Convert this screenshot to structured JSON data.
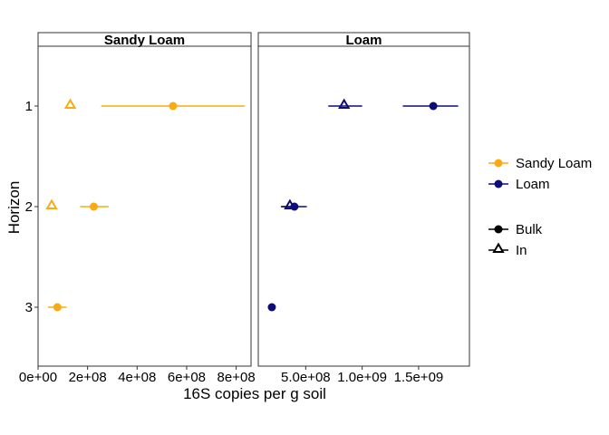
{
  "chart_data": {
    "type": "scatter",
    "subtype": "point-range, faceted",
    "xlabel": "16S copies per g soil",
    "ylabel": "Horizon",
    "y_categories": [
      "1",
      "2",
      "3"
    ],
    "grid": false,
    "legend_position": "right",
    "colors": {
      "Sandy Loam": "#f9ab11",
      "Loam": "#0e0c78"
    },
    "legend": {
      "color_items": [
        {
          "label": "Sandy Loam",
          "color": "#f9ab11"
        },
        {
          "label": "Loam",
          "color": "#0e0c78"
        }
      ],
      "shape_items": [
        {
          "label": "Bulk",
          "shape": "circle"
        },
        {
          "label": "In",
          "shape": "triangle-open"
        }
      ]
    },
    "facets": [
      {
        "title": "Sandy Loam",
        "color": "#f9ab11",
        "xlim": [
          0,
          860000000
        ],
        "x_ticks": [
          0,
          200000000,
          400000000,
          600000000,
          800000000
        ],
        "x_tick_labels": [
          "0e+00",
          "2e+08",
          "4e+08",
          "6e+08",
          "8e+08"
        ],
        "points": [
          {
            "horizon": "1",
            "type": "Bulk",
            "x": 545000000,
            "xmin": 255000000,
            "xmax": 835000000
          },
          {
            "horizon": "1",
            "type": "In",
            "x": 130000000,
            "xmin": 130000000,
            "xmax": 130000000
          },
          {
            "horizon": "2",
            "type": "Bulk",
            "x": 225000000,
            "xmin": 170000000,
            "xmax": 285000000
          },
          {
            "horizon": "2",
            "type": "In",
            "x": 55000000,
            "xmin": 55000000,
            "xmax": 55000000
          },
          {
            "horizon": "3",
            "type": "Bulk",
            "x": 78000000,
            "xmin": 40000000,
            "xmax": 115000000
          }
        ]
      },
      {
        "title": "Loam",
        "color": "#0e0c78",
        "xlim": [
          80000000,
          1950000000
        ],
        "x_ticks": [
          500000000,
          1000000000,
          1500000000
        ],
        "x_tick_labels": [
          "5.0e+08",
          "1.0e+09",
          "1.5e+09"
        ],
        "points": [
          {
            "horizon": "1",
            "type": "Bulk",
            "x": 1630000000,
            "xmin": 1360000000,
            "xmax": 1850000000
          },
          {
            "horizon": "1",
            "type": "In",
            "x": 840000000,
            "xmin": 700000000,
            "xmax": 1000000000
          },
          {
            "horizon": "2",
            "type": "Bulk",
            "x": 400000000,
            "xmin": 290000000,
            "xmax": 510000000
          },
          {
            "horizon": "2",
            "type": "In",
            "x": 360000000,
            "xmin": 280000000,
            "xmax": 410000000
          },
          {
            "horizon": "3",
            "type": "Bulk",
            "x": 200000000,
            "xmin": 180000000,
            "xmax": 220000000
          }
        ]
      }
    ]
  }
}
